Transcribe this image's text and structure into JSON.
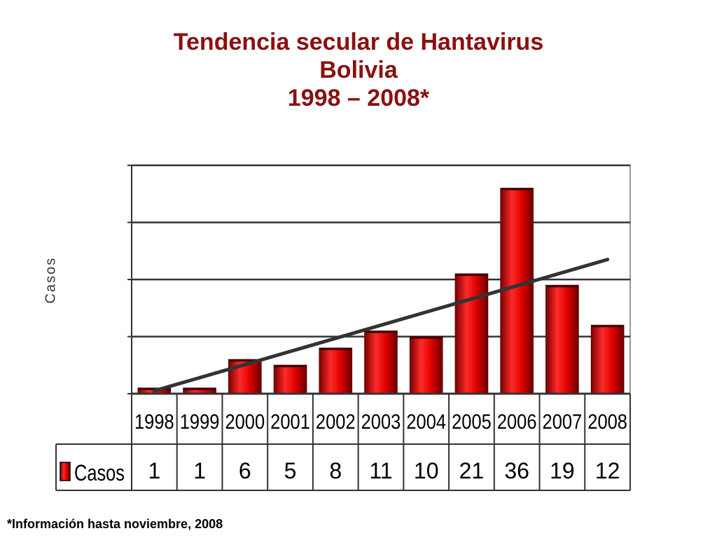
{
  "title_lines": [
    "Tendencia secular de Hantavirus",
    "Bolivia",
    "1998 – 2008*"
  ],
  "footnote": "*Información hasta noviembre, 2008",
  "colors": {
    "bar": "#e00000",
    "trend": "#333333",
    "title": "#8b1010"
  },
  "chart_data": {
    "type": "bar",
    "title": "Tendencia secular de Hantavirus Bolivia 1998 – 2008*",
    "ylabel": "Casos",
    "xlabel": "",
    "categories": [
      "1998",
      "1999",
      "2000",
      "2001",
      "2002",
      "2003",
      "2004",
      "2005",
      "2006",
      "2007",
      "2008"
    ],
    "series": [
      {
        "name": "Casos",
        "values": [
          1,
          1,
          6,
          5,
          8,
          11,
          10,
          21,
          36,
          19,
          12
        ]
      }
    ],
    "ylim": [
      0,
      40
    ],
    "grid": true,
    "trendline": {
      "type": "linear",
      "start": 0.5,
      "end": 23.5
    },
    "data_table": true
  }
}
